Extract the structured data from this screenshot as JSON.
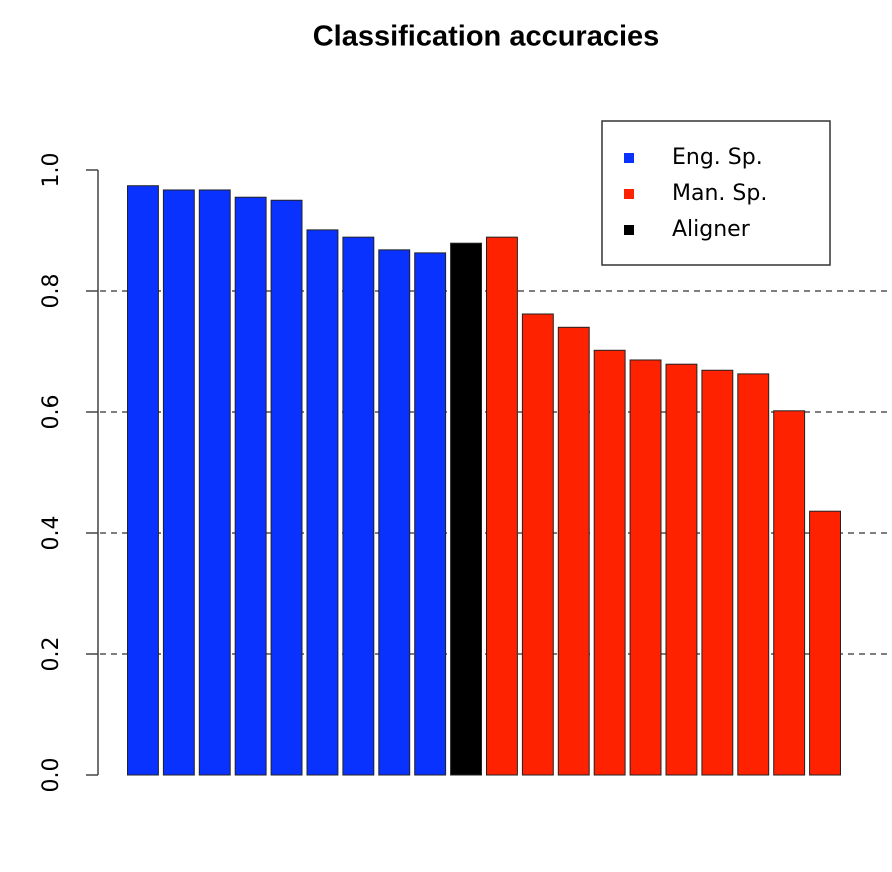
{
  "chart_data": {
    "type": "bar",
    "title": "Classification accuracies",
    "categories": [
      null,
      null,
      null,
      null,
      null,
      null,
      null,
      null,
      null,
      null,
      null,
      null,
      null,
      null,
      null,
      null,
      null,
      null,
      null,
      null
    ],
    "series": [
      {
        "name": "Eng. Sp.",
        "color": "#0a32ff",
        "values": [
          0.974,
          0.967,
          0.967,
          0.955,
          0.95,
          0.901,
          0.889,
          0.868,
          0.863,
          null,
          null,
          null,
          null,
          null,
          null,
          null,
          null,
          null,
          null,
          null
        ]
      },
      {
        "name": "Man. Sp.",
        "color": "#ff2200",
        "values": [
          null,
          null,
          null,
          null,
          null,
          null,
          null,
          null,
          null,
          null,
          0.889,
          0.762,
          0.74,
          0.702,
          0.686,
          0.679,
          0.669,
          0.663,
          0.602,
          0.436
        ]
      },
      {
        "name": "Aligner",
        "color": "#000000",
        "values": [
          null,
          null,
          null,
          null,
          null,
          null,
          null,
          null,
          null,
          0.879,
          null,
          null,
          null,
          null,
          null,
          null,
          null,
          null,
          null,
          null
        ]
      }
    ],
    "ylim": [
      0,
      1
    ],
    "yticks": [
      {
        "value": 0,
        "label": "0.0"
      },
      0.2,
      0.4,
      0.6,
      0.8,
      {
        "value": 1,
        "label": "1.0"
      }
    ],
    "grid": true,
    "legend": "topright"
  }
}
